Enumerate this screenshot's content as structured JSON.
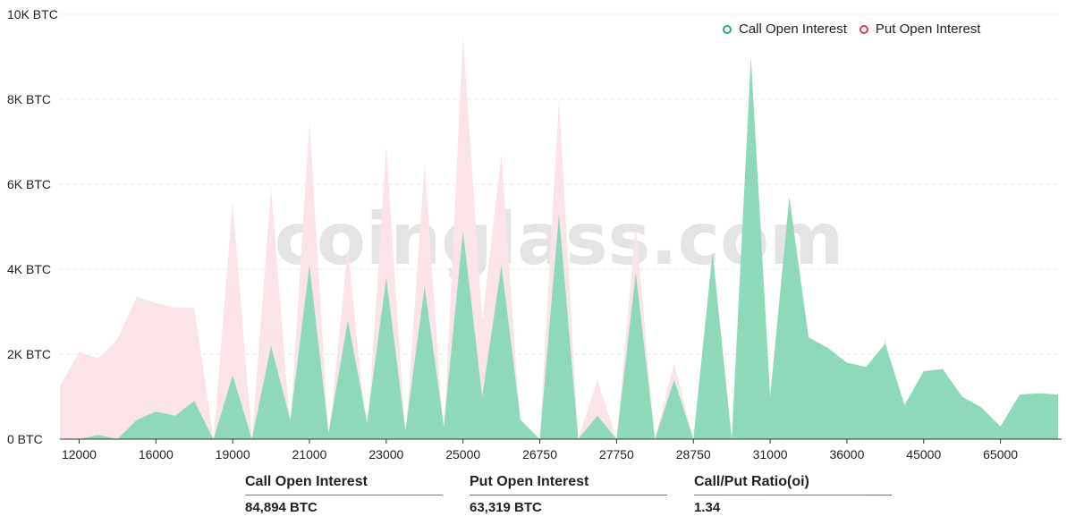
{
  "colors": {
    "call": "#1aaf7a",
    "call_fill": "#8ed9b9",
    "put": "#e0355b",
    "put_fill": "#fbe4e7",
    "grid": "#e6e6e6"
  },
  "watermark": "coinglass.com",
  "legend": {
    "call_label": "Call Open Interest",
    "put_label": "Put  Open Interest"
  },
  "stats": {
    "call_label": "Call Open Interest",
    "call_value": "84,894 BTC",
    "put_label": "Put Open Interest",
    "put_value": "63,319  BTC",
    "ratio_label": "Call/Put Ratio(oi)",
    "ratio_value": "1.34"
  },
  "chart_data": {
    "type": "area",
    "y_unit": "BTC",
    "ylim": [
      0,
      10000
    ],
    "y_ticks": [
      "0 BTC",
      "2K BTC",
      "4K BTC",
      "6K BTC",
      "8K BTC",
      "10K BTC"
    ],
    "y_tick_values": [
      0,
      2000,
      4000,
      6000,
      8000,
      10000
    ],
    "grid": true,
    "legend_position": "top-right",
    "x_tick_labels": [
      "12000",
      "16000",
      "19000",
      "21000",
      "23000",
      "25000",
      "26750",
      "27750",
      "28750",
      "31000",
      "36000",
      "45000",
      "65000"
    ],
    "x_tick_indices": [
      1,
      5,
      9,
      13,
      17,
      21,
      25,
      29,
      33,
      37,
      41,
      45,
      49
    ],
    "series": [
      {
        "name": "Call Open Interest",
        "values": [
          0,
          0,
          100,
          0,
          450,
          650,
          550,
          900,
          0,
          1500,
          0,
          2200,
          450,
          4100,
          150,
          2800,
          400,
          3800,
          200,
          3600,
          300,
          4900,
          1000,
          4100,
          450,
          0,
          5300,
          0,
          550,
          0,
          3900,
          0,
          1400,
          0,
          4400,
          0,
          9000,
          1000,
          5700,
          2400,
          2150,
          1800,
          1700,
          2250,
          800,
          1600,
          1650,
          1000,
          750,
          300,
          1050,
          1080,
          1050
        ]
      },
      {
        "name": "Put Open Interest",
        "values": [
          1250,
          2050,
          1900,
          2350,
          3350,
          3200,
          3100,
          3100,
          0,
          5600,
          0,
          5900,
          250,
          7500,
          0,
          4500,
          0,
          6900,
          0,
          6500,
          0,
          9500,
          2800,
          6700,
          200,
          0,
          8000,
          0,
          1400,
          0,
          5000,
          0,
          1800,
          0,
          3700,
          0,
          7600,
          0,
          4600,
          800,
          1250,
          850,
          600,
          2400,
          0,
          500,
          1700,
          350,
          200,
          0,
          500,
          900,
          800
        ]
      }
    ]
  }
}
